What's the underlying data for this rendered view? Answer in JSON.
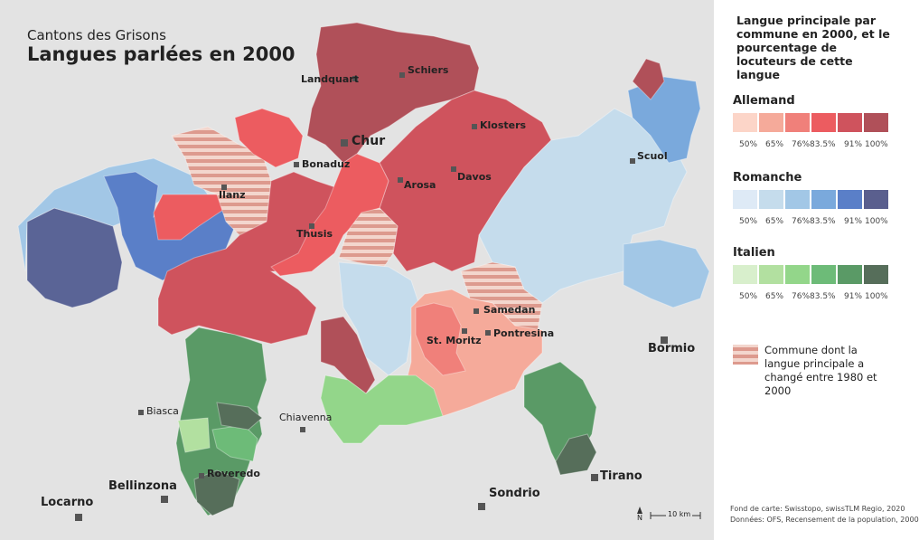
{
  "map": {
    "subtitle": "Cantons des Grisons",
    "title": "Langues parlées en 2000",
    "places": [
      {
        "label": "Landquart"
      },
      {
        "label": "Schiers"
      },
      {
        "label": "Chur"
      },
      {
        "label": "Klosters"
      },
      {
        "label": "Bonaduz"
      },
      {
        "label": "Arosa"
      },
      {
        "label": "Davos"
      },
      {
        "label": "Ilanz"
      },
      {
        "label": "Thusis"
      },
      {
        "label": "Scuol"
      },
      {
        "label": "Samedan"
      },
      {
        "label": "St. Moritz"
      },
      {
        "label": "Pontresina"
      },
      {
        "label": "Bormio"
      },
      {
        "label": "Biasca"
      },
      {
        "label": "Chiavenna"
      },
      {
        "label": "Roveredo"
      },
      {
        "label": "Bellinzona"
      },
      {
        "label": "Tirano"
      },
      {
        "label": "Locarno"
      },
      {
        "label": "Sondrio"
      }
    ],
    "north": "N",
    "scale": "10 km",
    "credits": [
      "Fond de carte: Swisstopo, swissTLM Regio, 2020",
      "Données: OFS, Recensement de la population, 2000"
    ]
  },
  "legend": {
    "title": "Langue principale par commune en 2000, et le pourcentage de locuteurs de cette langue",
    "thresholds": [
      "50%",
      "65%",
      "76%",
      "83.5%",
      "91%",
      "100%"
    ],
    "groups": [
      {
        "name": "Allemand",
        "colors": [
          "#fcd5c8",
          "#f5aa9a",
          "#f0807a",
          "#ec5c60",
          "#cf535d",
          "#b05059"
        ]
      },
      {
        "name": "Romanche",
        "colors": [
          "#deeaf6",
          "#c5dcec",
          "#a2c7e6",
          "#7aa9dc",
          "#5a7fc8",
          "#5a5f8e"
        ]
      },
      {
        "name": "Italien",
        "colors": [
          "#d8efcc",
          "#b2e0a0",
          "#93d68a",
          "#6dbb78",
          "#5a9a66",
          "#566e5a"
        ]
      }
    ],
    "hatch_note": "Commune dont la langue principale a changé entre 1980 et 2000"
  }
}
